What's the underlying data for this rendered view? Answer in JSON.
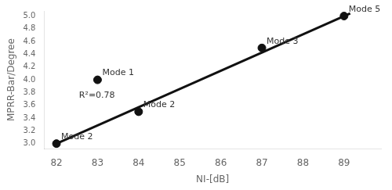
{
  "chart_data": {
    "type": "scatter",
    "xlabel": "NI-[dB]",
    "ylabel": "MPRR-Bar/Degree",
    "series": [
      {
        "type": "scatter",
        "color": "#111111",
        "x": [
          82,
          83,
          84,
          87,
          89
        ],
        "values": [
          3.0,
          4.0,
          3.5,
          4.5,
          5.0
        ],
        "labels": [
          "Mode 2",
          "Mode 1",
          "Mode 2",
          "Mode 3",
          "Mode 5"
        ]
      },
      {
        "type": "line",
        "color": "#111111",
        "x": [
          81.95,
          89.15
        ],
        "values": [
          2.9859345,
          5.0430465
        ]
      }
    ],
    "annotations": [
      {
        "text": "R²=0.78",
        "x": 82.55,
        "y": 3.82
      }
    ],
    "xlim": [
      81.7,
      89.9
    ],
    "ylim": [
      2.92,
      5.08
    ],
    "xticks": [
      82,
      83,
      84,
      85,
      86,
      87,
      88,
      89
    ],
    "yticks": [
      {
        "value": 3.0,
        "label": "3.0"
      },
      3.2,
      3.4,
      3.6,
      3.8,
      {
        "value": 4.0,
        "label": "4.0"
      },
      4.2,
      4.4,
      4.6,
      4.8,
      {
        "value": 5.0,
        "label": "5.0"
      }
    ],
    "grid": false
  }
}
